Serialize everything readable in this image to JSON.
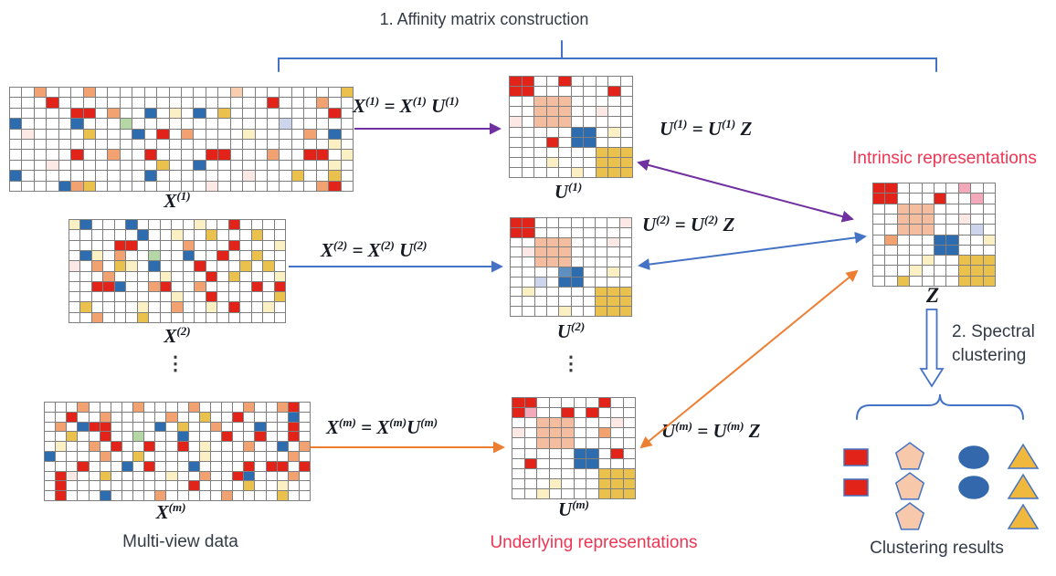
{
  "colors": {
    "accent_purple": "#7030a0",
    "accent_blue": "#4472c4",
    "accent_orange": "#ed7d31",
    "text_dark": "#333b47",
    "text_red": "#ee3654",
    "math_text": "#161a22",
    "grid_line": "#7f7f7f",
    "cell": {
      ".": "#ffffff",
      "r": "#e2231a",
      "k": "#f3a9b9",
      "b": "#2d6daf",
      "B": "#5d8fc0",
      "o": "#f2a270",
      "s": "#f4bda0",
      "t": "#f8cdb0",
      "y": "#eac14d",
      "l": "#faf0c4",
      "p": "#fce8e4",
      "g": "#b5d7a6",
      "v": "#ccd5ec"
    }
  },
  "header": {
    "step1_label": "1. Affinity matrix construction"
  },
  "captions": {
    "multi_view": "Multi-view data",
    "underlying": "Underlying representations",
    "intrinsic": "Intrinsic representations",
    "step2_line1": "2. Spectral",
    "step2_line2": "clustering",
    "clustering_results": "Clustering results",
    "ellipsis": "⋮"
  },
  "math": {
    "label_x1": [
      [
        "X",
        "(1)"
      ]
    ],
    "label_x2": [
      [
        "X",
        "(2)"
      ]
    ],
    "label_xm": [
      [
        "X",
        "(m)"
      ]
    ],
    "label_u1": [
      [
        "U",
        "(1)"
      ]
    ],
    "label_u2": [
      [
        "U",
        "(2)"
      ]
    ],
    "label_um": [
      [
        "U",
        "(m)"
      ]
    ],
    "label_z": [
      [
        "Z",
        ""
      ]
    ],
    "eq_x1": [
      [
        "X",
        "(1)"
      ],
      [
        " = ",
        ""
      ],
      [
        "X",
        "(1)"
      ],
      [
        " ",
        ""
      ],
      [
        "U",
        "(1)"
      ]
    ],
    "eq_u1": [
      [
        "U",
        "(1)"
      ],
      [
        " = ",
        ""
      ],
      [
        "U",
        "(1)"
      ],
      [
        " ",
        ""
      ],
      [
        "Z",
        ""
      ]
    ],
    "eq_x2": [
      [
        "X",
        "(2)"
      ],
      [
        " = ",
        ""
      ],
      [
        "X",
        "(2)"
      ],
      [
        " ",
        ""
      ],
      [
        "U",
        "(2)"
      ]
    ],
    "eq_u2": [
      [
        "U",
        "(2)"
      ],
      [
        " = ",
        ""
      ],
      [
        "U",
        "(2)"
      ],
      [
        " ",
        ""
      ],
      [
        "Z",
        ""
      ]
    ],
    "eq_xm": [
      [
        "X",
        "(m)"
      ],
      [
        " = ",
        ""
      ],
      [
        "X",
        "(m)"
      ],
      [
        "U",
        "(m)"
      ]
    ],
    "eq_um": [
      [
        "U",
        "(m)"
      ],
      [
        " = ",
        ""
      ],
      [
        "U",
        "(m)"
      ],
      [
        " ",
        ""
      ],
      [
        "Z",
        ""
      ]
    ]
  },
  "matrices": {
    "x1": {
      "rows": [
        "..o...o...........t........y",
        "...r.................r...o..",
        ".....rr.o..b.l.b.y........r.",
        "b....b...g............v.....",
        ".p....y...b.r.o....l....o.b.",
        "..........................l.",
        ".....r..o..r....rr...o..rr.l",
        "...p........y..b..........l.",
        "b..........b.......p...y..y.",
        "....boy.........p........or."
      ]
    },
    "x2": {
      "rows": [
        "lb...b.....l..r....",
        "......b..l..y...y..",
        "....rr....o...r...l",
        ".bl.o..g..b..r..y..",
        "p.o.yl.b...r...y.y.",
        "...o....l...r.y...l",
        "..rrb..or..o....r.r",
        ".........l..r.....y",
        ".y....l..o..l.r..l.",
        "..o...y............"
      ]
    },
    "xm": {
      "rows": [
        "...o....o....o....o..or.",
        "..r..o.....o..y..r....b.",
        ".o.brr....b.y..o...b..r.",
        "..y..r..g...b...r..r..r.",
        ".l..o.r..r..r.l...o..b.o",
        "b....o..y.....l.......o.",
        "...r...b.r...b....r.rr.r",
        ".rp..y.....l..o..rb...o.",
        ".r...........r....y..l..",
        ".r...b....o.....o....y.."
      ]
    },
    "u1": {
      "rows": [
        "rr..r.....",
        "rr......r.",
        "..sss.....",
        "..sss..p..",
        "p.sss.....",
        ".....bb.l.",
        "...r.bb...",
        ".......yyy",
        "...l...yyy",
        ".....l.yyy"
      ]
    },
    "u2": {
      "rows": [
        "rr.......p",
        "rr........",
        "..sss...p.",
        ".psss.....",
        "..sss.....",
        "....Bb..l.",
        "..v.bb....",
        ".l.....yyy",
        ".......yyy",
        "....l..yyy"
      ]
    },
    "um": {
      "rows": [
        "rr.....r..",
        "rk..r.r...",
        "..sss...p.",
        "p.sss..o..",
        "..sss.....",
        ".....bb.r.",
        ".r...bb...",
        ".......yyy",
        "...l...yyy",
        "..l....yyy"
      ]
    },
    "z": {
      "rows": [
        "rr.....k..",
        "rr...r..k.",
        "..sss.....",
        "..sss..p..",
        "..sss...v.",
        ".o...bb..l",
        ".....bb...",
        "....l..yyy",
        "...l...yyy",
        "..y....yyy"
      ]
    }
  },
  "results": {
    "columns": [
      {
        "shape": "square",
        "fill": "#e2231a",
        "stroke": "#4472c4",
        "count": 2
      },
      {
        "shape": "pentagon",
        "fill": "#f7c9aa",
        "stroke": "#4472c4",
        "count": 3
      },
      {
        "shape": "ellipse",
        "fill": "#3468ad",
        "stroke": "#3468ad",
        "count": 2
      },
      {
        "shape": "triangle",
        "fill": "#f0b83c",
        "stroke": "#4472c4",
        "count": 3
      }
    ]
  }
}
